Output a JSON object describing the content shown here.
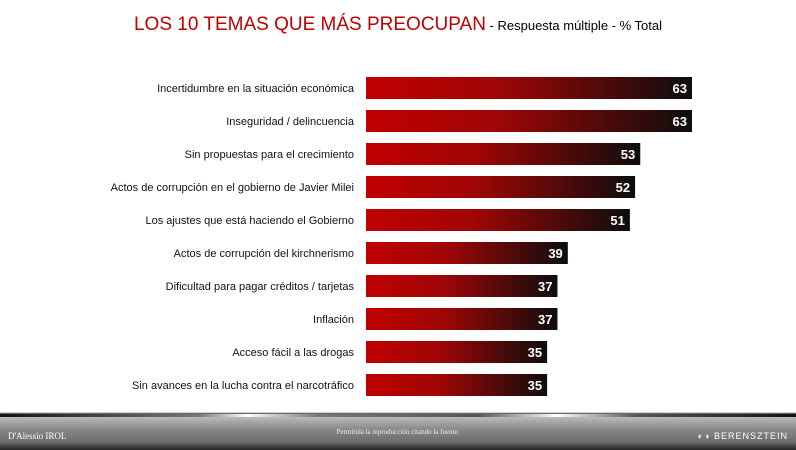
{
  "title": {
    "main": "LOS 10 TEMAS QUE MÁS PREOCUPAN",
    "sub": " - Respuesta múltiple - % Total"
  },
  "chart_data": {
    "type": "bar",
    "orientation": "horizontal",
    "categories": [
      "Incertidumbre en la situación económica",
      "Inseguridad / delincuencia",
      "Sin propuestas para el crecimiento",
      "Actos de corrupción en el gobierno de Javier Milei",
      "Los ajustes que está haciendo el Gobierno",
      "Actos de corrupción del kirchnerismo",
      "Dificultad para pagar créditos / tarjetas",
      "Inflación",
      "Acceso fácil a las drogas",
      "Sin avances en la lucha contra el narcotráfico"
    ],
    "values": [
      63,
      63,
      53,
      52,
      51,
      39,
      37,
      37,
      35,
      35
    ],
    "unit": "%",
    "colors": {
      "start": "#c00000",
      "end": "#0d0d0d"
    },
    "grid": false
  },
  "footer": {
    "note": "Permitida la reproducción citando la fuente.",
    "logo_left": "D'Alessio IROL",
    "logo_right": "BERENSZTEIN"
  }
}
